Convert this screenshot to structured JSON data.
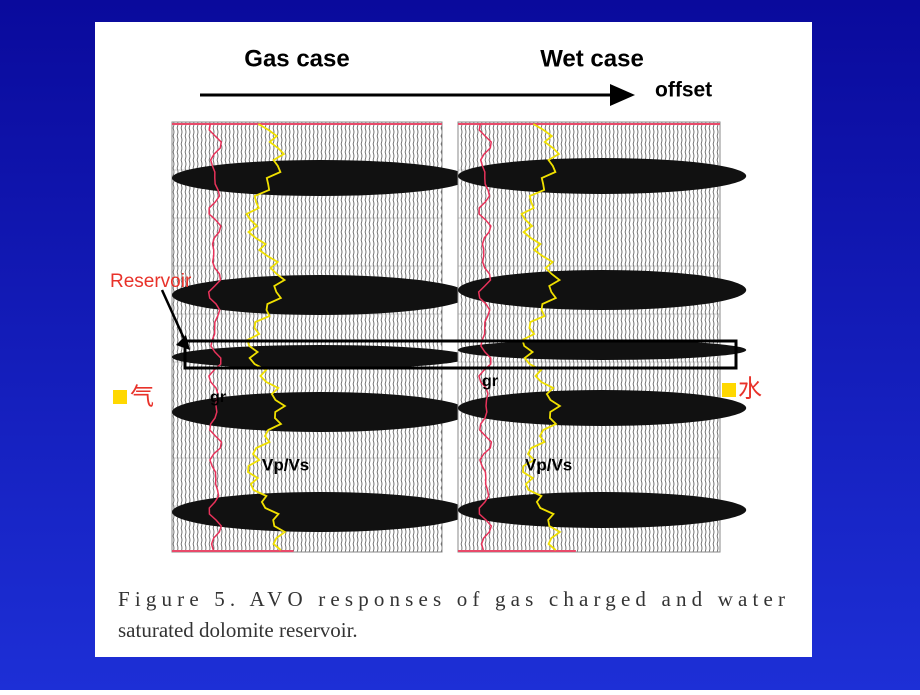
{
  "figure": {
    "left_label": "Gas case",
    "right_label": "Wet case",
    "axis_label": "offset",
    "reservoir_label": "Reservoir",
    "gas_marker": "气",
    "water_marker": "水",
    "left_gr": "gr",
    "right_gr": "gr",
    "left_ratio": "Vp/Vs",
    "right_ratio": "Vp/Vs",
    "caption_line1": "Figure 5. AVO responses of gas charged and water",
    "caption_line2": "saturated dolomite reservoir."
  }
}
